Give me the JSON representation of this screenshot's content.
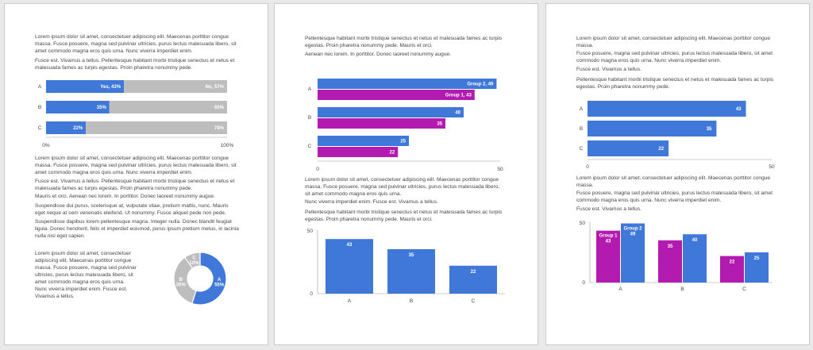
{
  "colors": {
    "blue": "#3f78d8",
    "gray": "#bdbdbd",
    "magenta": "#b31aaf",
    "axis": "#999999"
  },
  "page1": {
    "paragraphs": [
      "Lorem ipsum dolor sit amet, consectetuer adipiscing elit. Maecenas porttitor congue massa. Fusce posuere, magna sed pulvinar ultricies, purus lectus malesuada libero, sit amet commodo magna eros quis urna. Nunc viverra imperdiet enim.",
      "Fusce est. Vivamus a tellus. Pellentesque habitant morbi tristique senectus et netus et malesuada fames ac turpis egestas. Proin pharetra nonummy pede.",
      "Lorem ipsum dolor sit amet, consectetuer adipiscing elit. Maecenas porttitor congue massa. Fusce posuere, magna sed pulvinar ultricies, purus lectus malesuada libero, sit amet commodo magna eros quis urna. Nunc viverra imperdiet enim.",
      "Fusce est. Vivamus a tellus. Pellentesque habitant morbi tristique senectus et netus et malesuada fames ac turpis egestas. Proin pharetra nonummy pede.",
      "Mauris et orci. Aenean nec lorem. In porttitor. Donec laoreet nonummy augue.",
      "Suspendisse dui purus, scelerisque at, vulputate vitae, pretium mattis, nunc. Mauris eget neque at sem venenatis eleifend. Ut nonummy. Fusce aliquet pede non pede.",
      "Suspendisse dapibus lorem pellentesque magna. Integer nulla. Donec blandit feugiat ligula. Donec hendrerit, felis et imperdiet euismod, purus ipsum pretium metus, in lacinia nulla nisl eget sapien.",
      "Lorem ipsum dolor sit amet, consectetuer adipiscing elit. Maecenas porttitor congue massa. Fusce posuere, magna sed pulvinar ultricies, purus lectus malesuada libero, sit amet commodo magna eros quis urna.",
      "Nunc viverra imperdiet enim. Fusce est. Vivamus a tellus."
    ]
  },
  "page2": {
    "paragraphs": [
      "Pellentesque habitant morbi tristique senectus et netus et malesuada fames ac turpis egestas. Proin pharetra nonummy pede. Mauris et orci.",
      "Aenean nec lorem. In porttitor. Donec laoreet nonummy augue.",
      "Lorem ipsum dolor sit amet, consectetuer adipiscing elit. Maecenas porttitor congue massa. Fusce posuere, magna sed pulvinar ultricies, purus lectus malesuada libero, sit amet commodo magna eros quis urna.",
      "Nunc viverra imperdiet enim. Fusce est. Vivamus a tellus.",
      "Pellentesque habitant morbi tristique senectus et netus et malesuada fames ac turpis egestas. Proin pharetra nonummy pede. Mauris et orci."
    ]
  },
  "page3": {
    "paragraphs": [
      "Lorem ipsum dolor sit amet, consectetuer adipiscing elit. Maecenas porttitor congue massa.",
      "Fusce posuere, magna sed pulvinar ultricies, purus lectus malesuada libero, sit amet commodo magna eros quis urna. Nunc viverra imperdiet enim.",
      "Fusce est. Vivamus a tellus.",
      "Pellentesque habitant morbi tristique senectus et netus et malesuada fames ac turpis egestas. Proin pharetra nonummy pede.",
      "Lorem ipsum dolor sit amet, consectetuer adipiscing elit. Maecenas porttitor congue massa.",
      "Fusce posuere, magna sed pulvinar ultricies, purus lectus malesuada libero, sit amet commodo magna eros quis urna. Nunc viverra imperdiet enim.",
      "Fusce est. Vivamus a tellus."
    ]
  },
  "chart_data": [
    {
      "id": "stacked100",
      "type": "bar",
      "orientation": "horizontal",
      "stacked": "percent",
      "categories": [
        "A",
        "B",
        "C"
      ],
      "series": [
        {
          "name": "Yes",
          "values": [
            43,
            35,
            22
          ],
          "color": "#3f78d8"
        },
        {
          "name": "No",
          "values": [
            57,
            65,
            78
          ],
          "color": "#bdbdbd"
        }
      ],
      "data_labels": [
        [
          "Yes, 43%",
          "35%",
          "22%"
        ],
        [
          "No, 57%",
          "65%",
          "78%"
        ]
      ],
      "ticks": [
        "0%",
        "100%"
      ],
      "xlim": [
        0,
        100
      ]
    },
    {
      "id": "pie",
      "type": "pie",
      "donut": true,
      "slices": [
        {
          "label": "A",
          "pct": "55%",
          "value": 55,
          "color": "#3f78d8"
        },
        {
          "label": "B",
          "pct": "35%",
          "value": 35,
          "color": "#bdbdbd"
        },
        {
          "label": "C",
          "pct": "10%",
          "value": 10,
          "color": "#bdbdbd"
        }
      ]
    },
    {
      "id": "groupedH",
      "type": "bar",
      "orientation": "horizontal",
      "categories": [
        "A",
        "B",
        "C"
      ],
      "series": [
        {
          "name": "Group 2",
          "values": [
            49,
            40,
            25
          ],
          "color": "#3f78d8"
        },
        {
          "name": "Group 1",
          "values": [
            43,
            35,
            22
          ],
          "color": "#b31aaf"
        }
      ],
      "labels_first": [
        "Group 2, 49",
        "Group 1, 43"
      ],
      "ticks": [
        "0",
        "50"
      ],
      "xlim": [
        0,
        50
      ]
    },
    {
      "id": "columns",
      "type": "bar",
      "orientation": "vertical",
      "categories": [
        "A",
        "B",
        "C"
      ],
      "values": [
        43,
        35,
        22
      ],
      "ticks": [
        "0",
        "50"
      ],
      "ylim": [
        0,
        50
      ]
    },
    {
      "id": "simpleH",
      "type": "bar",
      "orientation": "horizontal",
      "categories": [
        "A",
        "B",
        "C"
      ],
      "values": [
        43,
        35,
        22
      ],
      "ticks": [
        "0",
        "50"
      ],
      "xlim": [
        0,
        50
      ]
    },
    {
      "id": "groupedV",
      "type": "bar",
      "orientation": "vertical",
      "categories": [
        "A",
        "B",
        "C"
      ],
      "series": [
        {
          "name": "Group 1",
          "values": [
            43,
            35,
            22
          ],
          "color": "#b31aaf"
        },
        {
          "name": "Group 2",
          "values": [
            49,
            40,
            25
          ],
          "color": "#3f78d8"
        }
      ],
      "labels_first": [
        [
          "Group 1",
          "43"
        ],
        [
          "Group 2",
          "49"
        ]
      ],
      "ticks": [
        "0",
        "50"
      ],
      "ylim": [
        0,
        50
      ]
    }
  ]
}
